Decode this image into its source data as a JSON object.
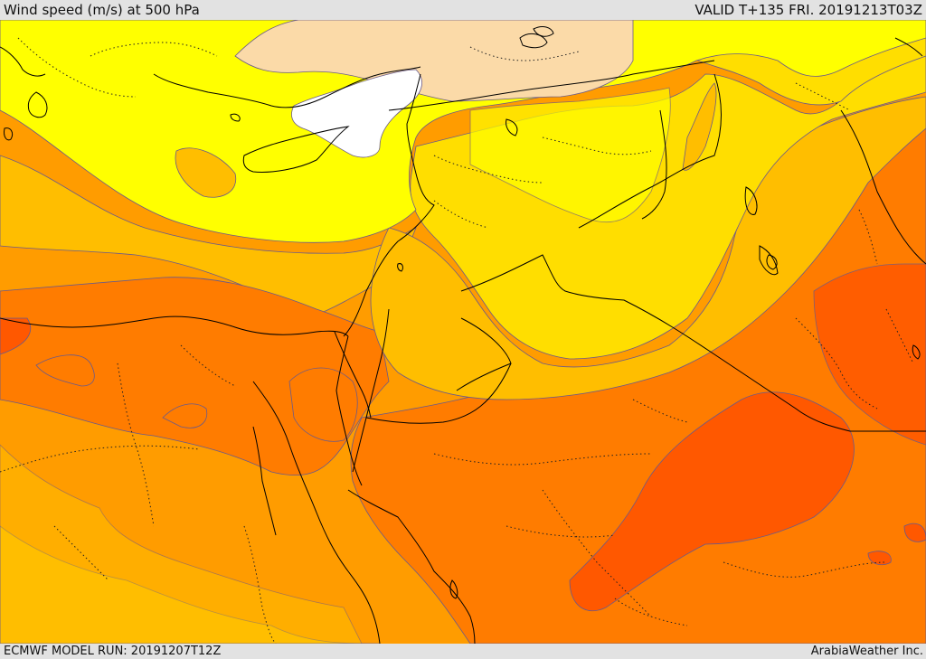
{
  "header": {
    "title": "Wind speed (m/s) at 500 hPa",
    "valid": "VALID T+135 FRI. 20191213T03Z"
  },
  "footer": {
    "model_run": "ECMWF MODEL RUN: 20191207T12Z",
    "credit": "ArabiaWeather Inc."
  },
  "colors": {
    "band_calm": "#ffffff",
    "band_1": "#fbdaa8",
    "band_2": "#ffff00",
    "band_3": "#ffde00",
    "band_4": "#ffbe00",
    "band_5": "#ff9c00",
    "band_6": "#ff7c00",
    "band_7": "#ff5800",
    "band_8": "#ff4000",
    "contour": "#6a5a8a",
    "coastline": "#000000"
  }
}
